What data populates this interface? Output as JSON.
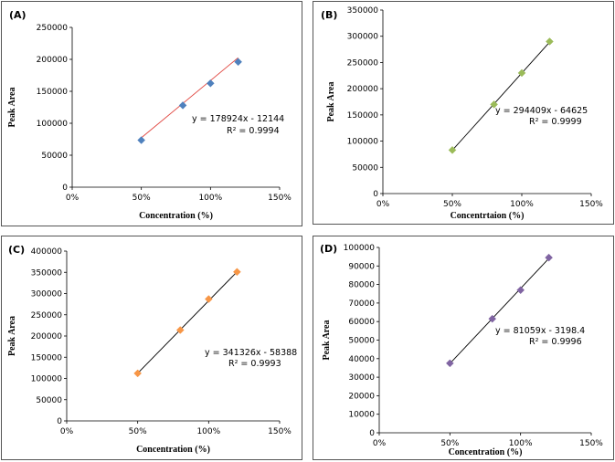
{
  "chart_data": [
    {
      "type": "scatter",
      "panel_label": "(A)",
      "xlabel": "Concentration  (%)",
      "ylabel": "Peak Area",
      "xlim": [
        0,
        150
      ],
      "ylim": [
        0,
        250000
      ],
      "x_ticks": [
        "0%",
        "50%",
        "100%",
        "150%"
      ],
      "y_ticks": [
        "0",
        "50000",
        "100000",
        "150000",
        "200000",
        "250000"
      ],
      "x": [
        50,
        80,
        100,
        120
      ],
      "y": [
        73500,
        128000,
        162500,
        196000
      ],
      "trendline": {
        "slope": 178924,
        "intercept": -12144
      },
      "equation": "y = 178924x - 12144",
      "r2": "R² = 0.9994",
      "marker_color": "#4f81bd",
      "line_color": "#e0443e"
    },
    {
      "type": "scatter",
      "panel_label": "(B)",
      "xlabel": "Concentrtaion  (%)",
      "ylabel": "Peak Area",
      "xlim": [
        0,
        150
      ],
      "ylim": [
        0,
        350000
      ],
      "x_ticks": [
        "0%",
        "50%",
        "100%",
        "150%"
      ],
      "y_ticks": [
        "0",
        "50000",
        "100000",
        "150000",
        "200000",
        "250000",
        "300000",
        "350000"
      ],
      "x": [
        50,
        80,
        100,
        120
      ],
      "y": [
        83000,
        170000,
        230000,
        290000
      ],
      "trendline": {
        "slope": 294409,
        "intercept": -64625
      },
      "equation": "y = 294409x - 64625",
      "r2": "R² = 0.9999",
      "marker_color": "#9bbb59",
      "line_color": "#000000"
    },
    {
      "type": "scatter",
      "panel_label": "(C)",
      "xlabel": "Concentration   (%)",
      "ylabel": "Peak Area",
      "xlim": [
        0,
        150
      ],
      "ylim": [
        0,
        400000
      ],
      "x_ticks": [
        "0%",
        "50%",
        "100%",
        "150%"
      ],
      "y_ticks": [
        "0",
        "50000",
        "100000",
        "150000",
        "200000",
        "250000",
        "300000",
        "350000",
        "400000"
      ],
      "x": [
        50,
        80,
        100,
        120
      ],
      "y": [
        112000,
        214000,
        287000,
        351000
      ],
      "trendline": {
        "slope": 341326,
        "intercept": -58388
      },
      "equation": "y = 341326x - 58388",
      "r2": "R² = 0.9993",
      "marker_color": "#f79646",
      "line_color": "#000000"
    },
    {
      "type": "scatter",
      "panel_label": "(D)",
      "xlabel": "Concentration  (%)",
      "ylabel": "Peak Area",
      "xlim": [
        0,
        150
      ],
      "ylim": [
        0,
        100000
      ],
      "x_ticks": [
        "0%",
        "50%",
        "100%",
        "150%"
      ],
      "y_ticks": [
        "0",
        "10000",
        "20000",
        "30000",
        "40000",
        "50000",
        "60000",
        "70000",
        "80000",
        "90000",
        "100000"
      ],
      "x": [
        50,
        80,
        100,
        120
      ],
      "y": [
        37500,
        61500,
        77000,
        94500
      ],
      "trendline": {
        "slope": 81059,
        "intercept": -3198.4
      },
      "equation": "y = 81059x - 3198.4",
      "r2": "R² = 0.9996",
      "marker_color": "#8064a2",
      "line_color": "#000000"
    }
  ]
}
